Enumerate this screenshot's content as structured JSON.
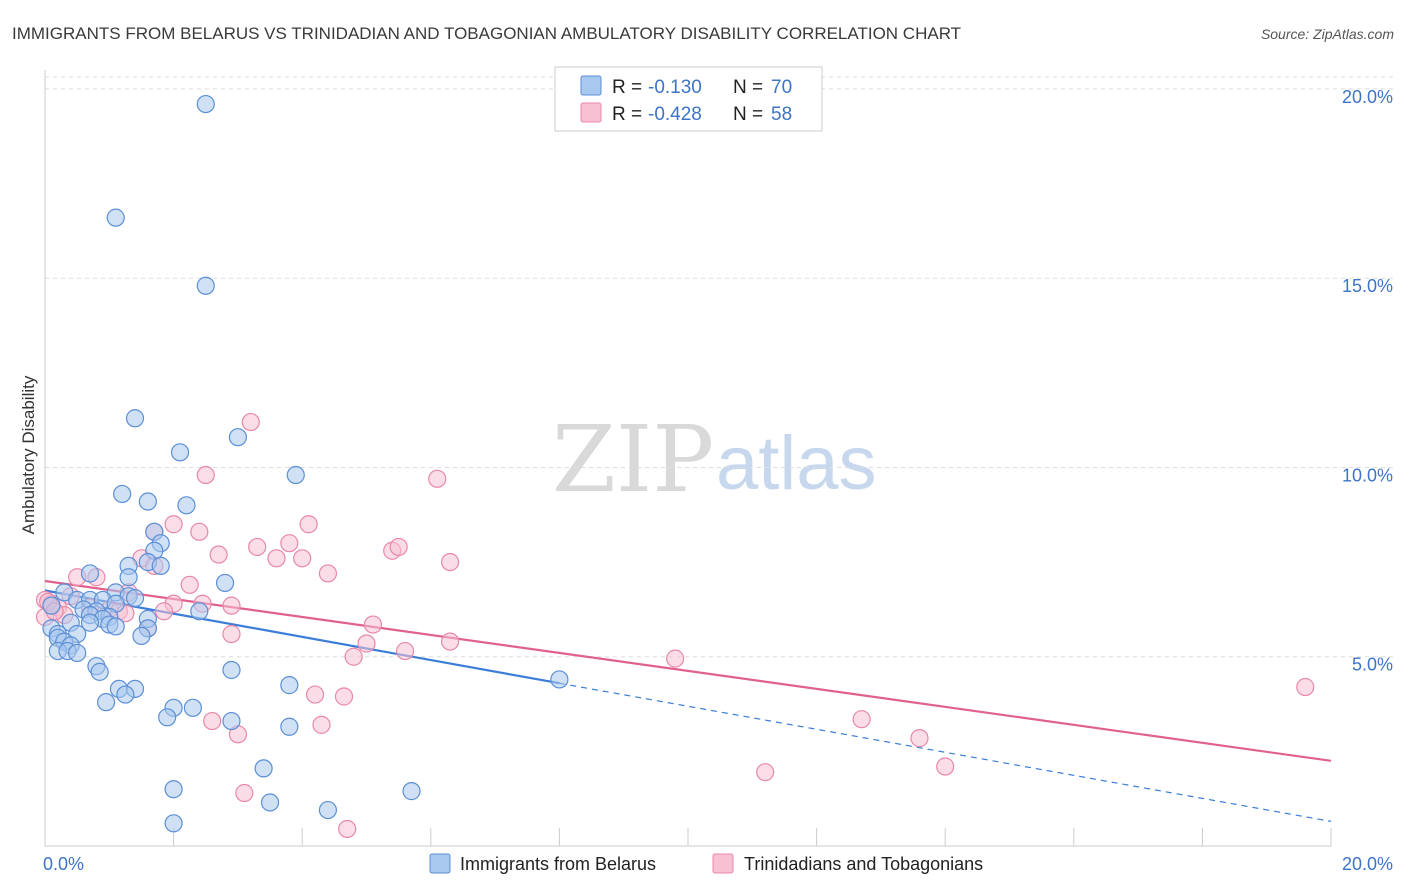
{
  "title": "IMMIGRANTS FROM BELARUS VS TRINIDADIAN AND TOBAGONIAN AMBULATORY DISABILITY CORRELATION CHART",
  "source": "Source: ZipAtlas.com",
  "watermark": {
    "part1": "ZIP",
    "part2": "atlas"
  },
  "legend_top": {
    "rows": [
      {
        "r_label": "R =",
        "r_value": "-0.130",
        "n_label": "N =",
        "n_value": "70"
      },
      {
        "r_label": "R =",
        "r_value": "-0.428",
        "n_label": "N =",
        "n_value": "58"
      }
    ]
  },
  "legend_bottom": {
    "items": [
      "Immigrants from Belarus",
      "Trinidadians and Tobagonians"
    ]
  },
  "chart_data": {
    "type": "scatter",
    "title": "IMMIGRANTS FROM BELARUS VS TRINIDADIAN AND TOBAGONIAN AMBULATORY DISABILITY CORRELATION CHART",
    "xlabel": "",
    "ylabel": "Ambulatory Disability",
    "xlim": [
      0,
      20
    ],
    "ylim": [
      0,
      20.5
    ],
    "x_tick_labels": [
      "0.0%",
      "20.0%"
    ],
    "y_ticks": [
      {
        "value": 5,
        "label": "5.0%"
      },
      {
        "value": 10,
        "label": "10.0%"
      },
      {
        "value": 15,
        "label": "15.0%"
      },
      {
        "value": 20,
        "label": "20.0%"
      }
    ],
    "grid": "horizontal dashed",
    "legend_position": "top-center",
    "colors": {
      "blue_fill": "#a9c8ef",
      "blue_stroke": "#5b8fd6",
      "blue_line": "#3b7dd8",
      "pink_fill": "#f7c1d3",
      "pink_stroke": "#e888aa",
      "pink_line": "#e0608e"
    },
    "series": [
      {
        "name": "Immigrants from Belarus",
        "r": -0.13,
        "n": 70,
        "trend": {
          "x0": 0,
          "y0": 6.75,
          "x1": 8,
          "y1": 4.3,
          "dash_to_x": 20,
          "dash_to_y": 0.65
        },
        "points": [
          [
            2.5,
            19.6
          ],
          [
            1.1,
            16.6
          ],
          [
            2.5,
            14.8
          ],
          [
            1.4,
            11.3
          ],
          [
            3.0,
            10.8
          ],
          [
            2.1,
            10.4
          ],
          [
            3.9,
            9.8
          ],
          [
            1.2,
            9.3
          ],
          [
            1.6,
            9.1
          ],
          [
            2.2,
            9.0
          ],
          [
            1.7,
            8.3
          ],
          [
            1.8,
            8.0
          ],
          [
            1.7,
            7.8
          ],
          [
            1.6,
            7.5
          ],
          [
            1.3,
            7.4
          ],
          [
            1.8,
            7.4
          ],
          [
            0.7,
            7.2
          ],
          [
            1.3,
            7.1
          ],
          [
            2.8,
            6.95
          ],
          [
            0.3,
            6.7
          ],
          [
            1.1,
            6.7
          ],
          [
            1.3,
            6.6
          ],
          [
            1.4,
            6.55
          ],
          [
            0.5,
            6.5
          ],
          [
            0.7,
            6.5
          ],
          [
            0.9,
            6.5
          ],
          [
            1.1,
            6.4
          ],
          [
            0.1,
            6.35
          ],
          [
            0.6,
            6.25
          ],
          [
            0.8,
            6.2
          ],
          [
            2.4,
            6.2
          ],
          [
            0.7,
            6.1
          ],
          [
            1.0,
            6.05
          ],
          [
            1.6,
            6.0
          ],
          [
            0.9,
            6.0
          ],
          [
            0.4,
            5.9
          ],
          [
            0.7,
            5.9
          ],
          [
            1.0,
            5.85
          ],
          [
            1.1,
            5.8
          ],
          [
            1.6,
            5.75
          ],
          [
            0.1,
            5.75
          ],
          [
            0.2,
            5.6
          ],
          [
            0.5,
            5.6
          ],
          [
            1.5,
            5.55
          ],
          [
            0.2,
            5.5
          ],
          [
            0.3,
            5.4
          ],
          [
            0.4,
            5.3
          ],
          [
            0.2,
            5.15
          ],
          [
            0.35,
            5.15
          ],
          [
            0.5,
            5.1
          ],
          [
            0.8,
            4.75
          ],
          [
            0.85,
            4.6
          ],
          [
            2.9,
            4.65
          ],
          [
            8.0,
            4.4
          ],
          [
            3.8,
            4.25
          ],
          [
            1.15,
            4.15
          ],
          [
            1.4,
            4.15
          ],
          [
            1.25,
            4.0
          ],
          [
            0.95,
            3.8
          ],
          [
            2.0,
            3.65
          ],
          [
            2.3,
            3.65
          ],
          [
            1.9,
            3.4
          ],
          [
            2.9,
            3.3
          ],
          [
            3.8,
            3.15
          ],
          [
            3.4,
            2.05
          ],
          [
            2.0,
            1.5
          ],
          [
            5.7,
            1.45
          ],
          [
            3.5,
            1.15
          ],
          [
            4.4,
            0.95
          ],
          [
            2.0,
            0.6
          ]
        ]
      },
      {
        "name": "Trinidadians and Tobagonians",
        "r": -0.428,
        "n": 58,
        "trend": {
          "x0": 0,
          "y0": 7.0,
          "x1": 20,
          "y1": 2.25
        },
        "points": [
          [
            3.2,
            11.2
          ],
          [
            2.5,
            9.8
          ],
          [
            6.1,
            9.7
          ],
          [
            4.1,
            8.5
          ],
          [
            2.0,
            8.5
          ],
          [
            2.4,
            8.3
          ],
          [
            1.7,
            8.3
          ],
          [
            3.8,
            8.0
          ],
          [
            3.3,
            7.9
          ],
          [
            5.4,
            7.8
          ],
          [
            5.5,
            7.9
          ],
          [
            2.7,
            7.7
          ],
          [
            3.6,
            7.6
          ],
          [
            1.5,
            7.6
          ],
          [
            4.0,
            7.6
          ],
          [
            6.3,
            7.5
          ],
          [
            1.7,
            7.4
          ],
          [
            4.4,
            7.2
          ],
          [
            0.5,
            7.1
          ],
          [
            0.8,
            7.1
          ],
          [
            2.25,
            6.9
          ],
          [
            1.3,
            6.7
          ],
          [
            0.4,
            6.6
          ],
          [
            0.0,
            6.5
          ],
          [
            0.1,
            6.4
          ],
          [
            2.0,
            6.4
          ],
          [
            2.45,
            6.4
          ],
          [
            2.9,
            6.35
          ],
          [
            0.2,
            6.3
          ],
          [
            0.7,
            6.3
          ],
          [
            1.0,
            6.25
          ],
          [
            1.15,
            6.2
          ],
          [
            1.25,
            6.15
          ],
          [
            1.85,
            6.2
          ],
          [
            0.3,
            6.1
          ],
          [
            0.0,
            6.05
          ],
          [
            1.6,
            5.75
          ],
          [
            2.9,
            5.6
          ],
          [
            5.1,
            5.85
          ],
          [
            6.3,
            5.4
          ],
          [
            5.0,
            5.35
          ],
          [
            5.6,
            5.15
          ],
          [
            4.8,
            5.0
          ],
          [
            9.8,
            4.95
          ],
          [
            19.6,
            4.2
          ],
          [
            4.2,
            4.0
          ],
          [
            4.65,
            3.95
          ],
          [
            2.6,
            3.3
          ],
          [
            4.3,
            3.2
          ],
          [
            3.0,
            2.95
          ],
          [
            12.7,
            3.35
          ],
          [
            13.6,
            2.85
          ],
          [
            14.0,
            2.1
          ],
          [
            11.2,
            1.95
          ],
          [
            3.1,
            1.4
          ],
          [
            4.7,
            0.45
          ],
          [
            0.05,
            6.45
          ],
          [
            0.15,
            6.2
          ]
        ]
      }
    ]
  }
}
